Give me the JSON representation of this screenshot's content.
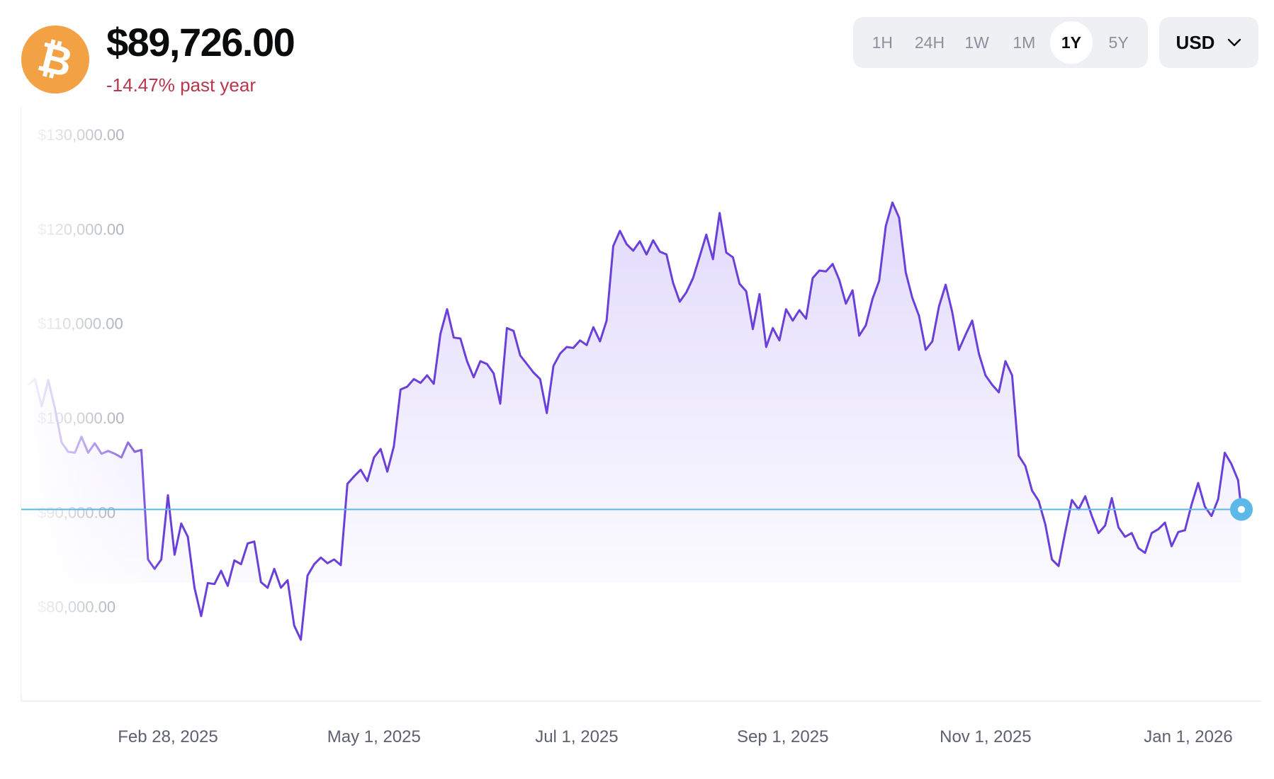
{
  "asset": {
    "icon": "bitcoin-icon",
    "icon_color": "#f2a244",
    "price": "$89,726.00",
    "change": "-14.47% past year",
    "change_color": "#b8374a"
  },
  "range_selector": {
    "options": [
      "1H",
      "24H",
      "1W",
      "1M",
      "1Y",
      "5Y"
    ],
    "selected": "1Y"
  },
  "currency_selector": {
    "value": "USD",
    "icon": "chevron-down-icon"
  },
  "chart_data": {
    "type": "line",
    "title": "",
    "xlabel": "",
    "ylabel": "",
    "yticks": [
      "$130,000.00",
      "$120,000.00",
      "$110,000.00",
      "$100,000.00",
      "$90,000.00",
      "$80,000.00"
    ],
    "ytick_values": [
      130000,
      120000,
      110000,
      100000,
      90000,
      80000
    ],
    "xticks": [
      "Feb 28, 2025",
      "May 1, 2025",
      "Jul 1, 2025",
      "Sep 1, 2025",
      "Nov 1, 2025",
      "Jan 1, 2026"
    ],
    "xtick_dates": [
      "2025-02-28",
      "2025-05-01",
      "2025-07-01",
      "2025-09-01",
      "2025-11-01",
      "2026-01-01"
    ],
    "ylim": [
      70000,
      133000
    ],
    "xlim": [
      "2025-01-17",
      "2026-01-17"
    ],
    "grid": false,
    "line_color": "#6b3fd9",
    "reference_line": {
      "value": 90300,
      "color": "#5bb8e8"
    },
    "current_point": {
      "x": "2026-01-17",
      "y": 90300
    },
    "series": [
      {
        "x": [
          "2025-01-17",
          "2025-01-19",
          "2025-01-21",
          "2025-01-23",
          "2025-01-25",
          "2025-01-27",
          "2025-01-29",
          "2025-01-31",
          "2025-02-02",
          "2025-02-04",
          "2025-02-06",
          "2025-02-08",
          "2025-02-10",
          "2025-02-12",
          "2025-02-14",
          "2025-02-16",
          "2025-02-18",
          "2025-02-20",
          "2025-02-22",
          "2025-02-24",
          "2025-02-26",
          "2025-02-28",
          "2025-03-02",
          "2025-03-04",
          "2025-03-06",
          "2025-03-08",
          "2025-03-10",
          "2025-03-12",
          "2025-03-14",
          "2025-03-16",
          "2025-03-18",
          "2025-03-20",
          "2025-03-22",
          "2025-03-24",
          "2025-03-26",
          "2025-03-28",
          "2025-03-30",
          "2025-04-01",
          "2025-04-03",
          "2025-04-05",
          "2025-04-07",
          "2025-04-09",
          "2025-04-11",
          "2025-04-13",
          "2025-04-15",
          "2025-04-17",
          "2025-04-19",
          "2025-04-21",
          "2025-04-23",
          "2025-04-25",
          "2025-04-27",
          "2025-04-29",
          "2025-05-01",
          "2025-05-03",
          "2025-05-05",
          "2025-05-07",
          "2025-05-09",
          "2025-05-11",
          "2025-05-13",
          "2025-05-15",
          "2025-05-17",
          "2025-05-19",
          "2025-05-21",
          "2025-05-23",
          "2025-05-25",
          "2025-05-27",
          "2025-05-29",
          "2025-05-31",
          "2025-06-02",
          "2025-06-04",
          "2025-06-06",
          "2025-06-08",
          "2025-06-10",
          "2025-06-12",
          "2025-06-14",
          "2025-06-16",
          "2025-06-18",
          "2025-06-20",
          "2025-06-22",
          "2025-06-24",
          "2025-06-26",
          "2025-06-28",
          "2025-06-30",
          "2025-07-02",
          "2025-07-04",
          "2025-07-06",
          "2025-07-08",
          "2025-07-10",
          "2025-07-12",
          "2025-07-14",
          "2025-07-16",
          "2025-07-18",
          "2025-07-20",
          "2025-07-22",
          "2025-07-24",
          "2025-07-26",
          "2025-07-28",
          "2025-07-30",
          "2025-08-01",
          "2025-08-03",
          "2025-08-05",
          "2025-08-07",
          "2025-08-09",
          "2025-08-11",
          "2025-08-13",
          "2025-08-15",
          "2025-08-17",
          "2025-08-19",
          "2025-08-21",
          "2025-08-23",
          "2025-08-25",
          "2025-08-27",
          "2025-08-29",
          "2025-08-31",
          "2025-09-02",
          "2025-09-04",
          "2025-09-06",
          "2025-09-08",
          "2025-09-10",
          "2025-09-12",
          "2025-09-14",
          "2025-09-16",
          "2025-09-18",
          "2025-09-20",
          "2025-09-22",
          "2025-09-24",
          "2025-09-26",
          "2025-09-28",
          "2025-09-30",
          "2025-10-02",
          "2025-10-04",
          "2025-10-06",
          "2025-10-08",
          "2025-10-10",
          "2025-10-12",
          "2025-10-14",
          "2025-10-16",
          "2025-10-18",
          "2025-10-20",
          "2025-10-22",
          "2025-10-24",
          "2025-10-26",
          "2025-10-28",
          "2025-10-30",
          "2025-11-01",
          "2025-11-03",
          "2025-11-05",
          "2025-11-07",
          "2025-11-09",
          "2025-11-11",
          "2025-11-13",
          "2025-11-15",
          "2025-11-17",
          "2025-11-19",
          "2025-11-21",
          "2025-11-23",
          "2025-11-25",
          "2025-11-27",
          "2025-11-29",
          "2025-12-01",
          "2025-12-03",
          "2025-12-05",
          "2025-12-07",
          "2025-12-09",
          "2025-12-11",
          "2025-12-13",
          "2025-12-15",
          "2025-12-17",
          "2025-12-19",
          "2025-12-21",
          "2025-12-23",
          "2025-12-25",
          "2025-12-27",
          "2025-12-29",
          "2025-12-31",
          "2026-01-02",
          "2026-01-04",
          "2026-01-06",
          "2026-01-08",
          "2026-01-10",
          "2026-01-12",
          "2026-01-14",
          "2026-01-16",
          "2026-01-17"
        ],
        "y": [
          103500,
          104100,
          101200,
          104000,
          101000,
          97400,
          96400,
          96300,
          98000,
          96300,
          97300,
          96200,
          96500,
          96200,
          95800,
          97400,
          96400,
          96600,
          85000,
          84000,
          85000,
          91800,
          85500,
          88800,
          87400,
          82000,
          79000,
          82500,
          82400,
          83800,
          82200,
          84900,
          84500,
          86700,
          86900,
          82600,
          82000,
          84000,
          82000,
          82800,
          78000,
          76500,
          83300,
          84500,
          85200,
          84600,
          85000,
          84400,
          93000,
          93800,
          94500,
          93300,
          95800,
          96700,
          94300,
          97000,
          103000,
          103300,
          104100,
          103700,
          104500,
          103600,
          108900,
          111500,
          108500,
          108400,
          106000,
          104300,
          106000,
          105700,
          104700,
          101500,
          109500,
          109200,
          106600,
          105700,
          104800,
          104100,
          100500,
          105500,
          106800,
          107500,
          107400,
          108200,
          107700,
          109600,
          108100,
          110300,
          118200,
          119800,
          118400,
          117700,
          118700,
          117300,
          118800,
          117600,
          117300,
          114300,
          112300,
          113300,
          114800,
          117100,
          119400,
          116800,
          121700,
          117500,
          117000,
          114200,
          113400,
          109400,
          113100,
          107500,
          109500,
          108200,
          111500,
          110300,
          111400,
          110500,
          114800,
          115600,
          115500,
          116300,
          114600,
          112100,
          113500,
          108700,
          109800,
          112600,
          114500,
          120300,
          122800,
          121200,
          115400,
          112700,
          110800,
          107200,
          108100,
          111800,
          114100,
          111200,
          107200,
          108800,
          110300,
          106800,
          104500,
          103500,
          102700,
          106000,
          104500,
          96000,
          94900,
          92300,
          91200,
          88700,
          85000,
          84300,
          87900,
          91300,
          90300,
          91700,
          89600,
          87800,
          88600,
          91500,
          88400,
          87400,
          87800,
          86200,
          85700,
          87800,
          88200,
          88900,
          86400,
          87900,
          88100,
          90800,
          93100,
          90600,
          89600,
          91400,
          96300,
          95100,
          93400,
          90300
        ]
      }
    ]
  }
}
